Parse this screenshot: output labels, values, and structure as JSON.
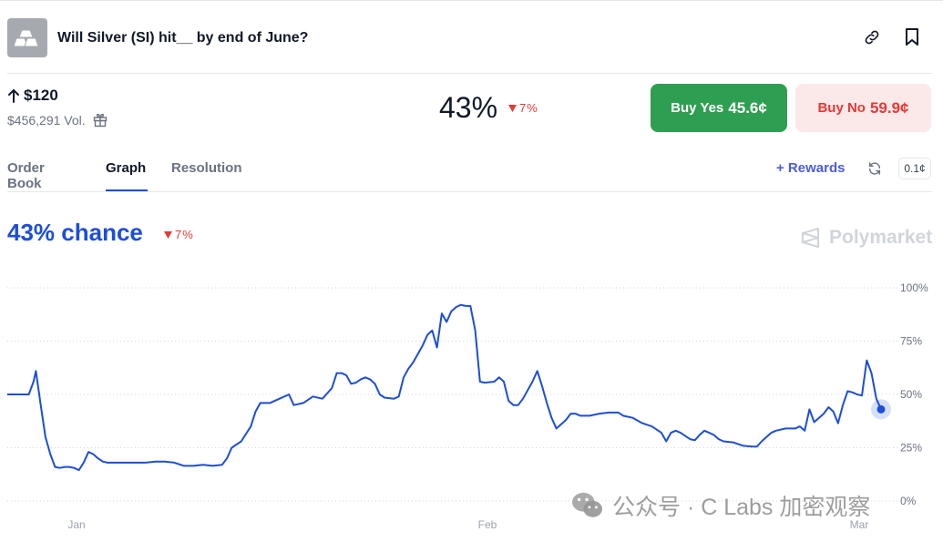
{
  "header": {
    "title": "Will Silver (SI) hit__ by end of June?",
    "thumb_icon": "silver-bars-icon",
    "actions": [
      "link-icon",
      "bookmark-icon"
    ]
  },
  "summary": {
    "target": "$120",
    "volume": "$456,291 Vol.",
    "chance": "43%",
    "change": "7%",
    "buy_yes_label": "Buy Yes",
    "buy_yes_price": "45.6¢",
    "buy_no_label": "Buy No",
    "buy_no_price": "59.9¢"
  },
  "tabs": {
    "items": [
      "Order Book",
      "Graph",
      "Resolution"
    ],
    "active": "Graph",
    "rewards_label": "+ Rewards",
    "tick_size": "0.1¢"
  },
  "chart_header": {
    "chance_text": "43% chance",
    "change": "7%",
    "brand": "Polymarket"
  },
  "chart_data": {
    "type": "line",
    "x_ticks": [
      "Jan",
      "Feb",
      "Mar"
    ],
    "y_ticks": [
      "100%",
      "75%",
      "50%",
      "25%",
      "0%"
    ],
    "ylim": [
      0,
      100
    ],
    "series": [
      {
        "color": "#1d4ed8",
        "points": [
          [
            0,
            50
          ],
          [
            3,
            50
          ],
          [
            4.5,
            50
          ],
          [
            5.5,
            56
          ],
          [
            6,
            61
          ],
          [
            7,
            45
          ],
          [
            8,
            30
          ],
          [
            9,
            22
          ],
          [
            10,
            16
          ],
          [
            11,
            15.5
          ],
          [
            12,
            16
          ],
          [
            13,
            16
          ],
          [
            14,
            15.5
          ],
          [
            15,
            14.5
          ],
          [
            16,
            18
          ],
          [
            17,
            23
          ],
          [
            18,
            22
          ],
          [
            19,
            20
          ],
          [
            20,
            18.5
          ],
          [
            21,
            18
          ],
          [
            23,
            18
          ],
          [
            25,
            18
          ],
          [
            27,
            18
          ],
          [
            29,
            18
          ],
          [
            31,
            18.5
          ],
          [
            33,
            18.5
          ],
          [
            35,
            18
          ],
          [
            37,
            16.5
          ],
          [
            39,
            16.5
          ],
          [
            41,
            17
          ],
          [
            43,
            16.5
          ],
          [
            45,
            17
          ],
          [
            46,
            20
          ],
          [
            47,
            25
          ],
          [
            49,
            28
          ],
          [
            51,
            35
          ],
          [
            52,
            42
          ],
          [
            53,
            46
          ],
          [
            55,
            46
          ],
          [
            57,
            48
          ],
          [
            59,
            50
          ],
          [
            60,
            45
          ],
          [
            62,
            46
          ],
          [
            64,
            49
          ],
          [
            66,
            48
          ],
          [
            68,
            53
          ],
          [
            69,
            60
          ],
          [
            70,
            60
          ],
          [
            71,
            59
          ],
          [
            72,
            55
          ],
          [
            73,
            55.5
          ],
          [
            74,
            57
          ],
          [
            75,
            58
          ],
          [
            76,
            57
          ],
          [
            77,
            55
          ],
          [
            78,
            50
          ],
          [
            79,
            48.5
          ],
          [
            81,
            48
          ],
          [
            82,
            49
          ],
          [
            83,
            58
          ],
          [
            84,
            62
          ],
          [
            85,
            65
          ],
          [
            86,
            69
          ],
          [
            87,
            73
          ],
          [
            88,
            78
          ],
          [
            89,
            80
          ],
          [
            90,
            72
          ],
          [
            91,
            88
          ],
          [
            92,
            84
          ],
          [
            93,
            89
          ],
          [
            94,
            91
          ],
          [
            95,
            92
          ],
          [
            96,
            91.5
          ],
          [
            97,
            91.5
          ],
          [
            98,
            80
          ],
          [
            99,
            56
          ],
          [
            100,
            55.5
          ],
          [
            102,
            56
          ],
          [
            103,
            58
          ],
          [
            104,
            56
          ],
          [
            105,
            47
          ],
          [
            106,
            45
          ],
          [
            107,
            45
          ],
          [
            108,
            48
          ],
          [
            109,
            52
          ],
          [
            110,
            56
          ],
          [
            111,
            61
          ],
          [
            112,
            54
          ],
          [
            113,
            46
          ],
          [
            114,
            39
          ],
          [
            115,
            34
          ],
          [
            116,
            36
          ],
          [
            117,
            38
          ],
          [
            118,
            41
          ],
          [
            119,
            41
          ],
          [
            120,
            40
          ],
          [
            122,
            40
          ],
          [
            124,
            41
          ],
          [
            126,
            41.5
          ],
          [
            128,
            41.5
          ],
          [
            129,
            40
          ],
          [
            131,
            39
          ],
          [
            133,
            36.5
          ],
          [
            135,
            35
          ],
          [
            137,
            32
          ],
          [
            138,
            28
          ],
          [
            139,
            32
          ],
          [
            140,
            33
          ],
          [
            141,
            32
          ],
          [
            142,
            30.5
          ],
          [
            143,
            29
          ],
          [
            144,
            28.5
          ],
          [
            145,
            31
          ],
          [
            146,
            33
          ],
          [
            147,
            32
          ],
          [
            148,
            31
          ],
          [
            149,
            29
          ],
          [
            150,
            28
          ],
          [
            152,
            27.5
          ],
          [
            154,
            26
          ],
          [
            156,
            25.5
          ],
          [
            157,
            25.5
          ],
          [
            158,
            28
          ],
          [
            159,
            30
          ],
          [
            160,
            32
          ],
          [
            161,
            33
          ],
          [
            163,
            34
          ],
          [
            165,
            34
          ],
          [
            166,
            35
          ],
          [
            167,
            33
          ],
          [
            168,
            43
          ],
          [
            169,
            37
          ],
          [
            170,
            39
          ],
          [
            171,
            41
          ],
          [
            172,
            44
          ],
          [
            173,
            42
          ],
          [
            174,
            36.5
          ],
          [
            175,
            45
          ],
          [
            176,
            51.5
          ],
          [
            177,
            51
          ],
          [
            178,
            50
          ],
          [
            179,
            49.5
          ],
          [
            180,
            66
          ],
          [
            181,
            60
          ],
          [
            182,
            48
          ],
          [
            183,
            43
          ]
        ]
      }
    ],
    "current_value": 43
  },
  "watermark": {
    "text": "公众号 · C Labs 加密观察",
    "icon": "wechat-icon"
  }
}
